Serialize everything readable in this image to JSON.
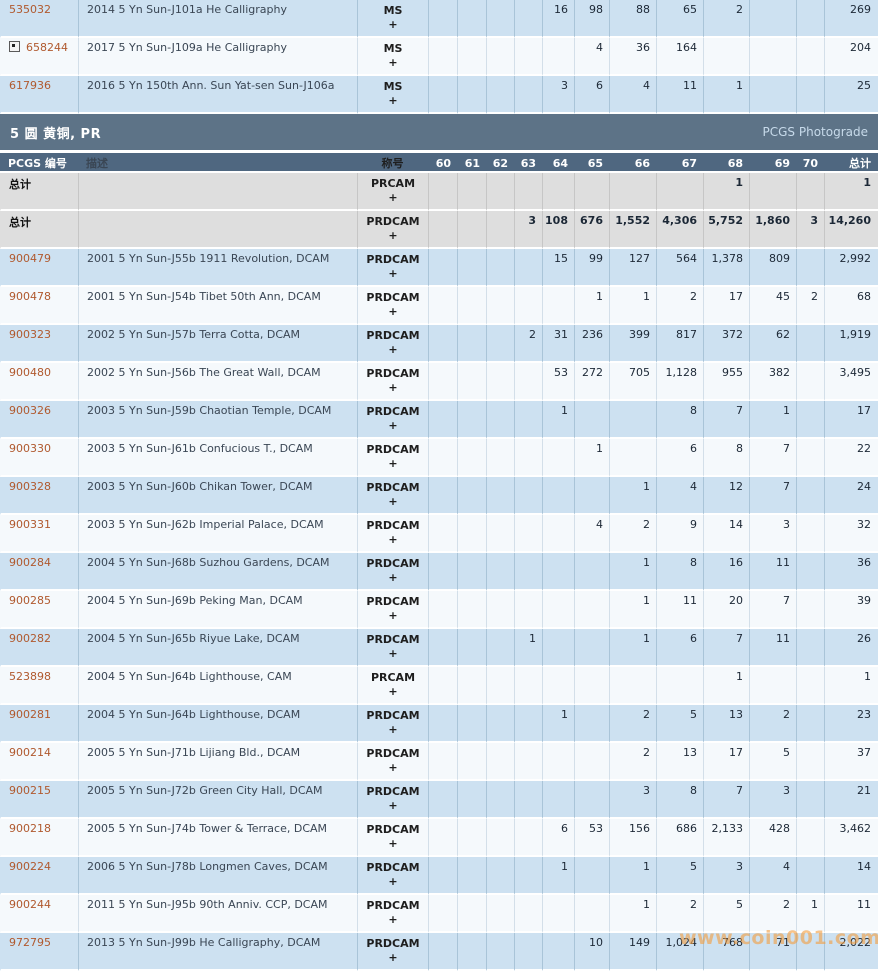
{
  "section": {
    "title": "5 圆 黄铜, PR",
    "right_label": "PCGS Photograde"
  },
  "watermark": "www.coin001.com",
  "columns": {
    "pcgs": "PCGS 编号",
    "desc": "描述",
    "desig": "称号",
    "grades": [
      "60",
      "61",
      "62",
      "63",
      "64",
      "65",
      "66",
      "67",
      "68",
      "69",
      "70"
    ],
    "total": "总计"
  },
  "top_rows": [
    {
      "pcgs": "535032",
      "icon": false,
      "desc": "2014 5 Yn Sun-J101a He Calligraphy",
      "desig": "MS",
      "plus": "+",
      "grades": {
        "64": "16",
        "65": "98",
        "66": "88",
        "67": "65",
        "68": "2"
      },
      "total": "269"
    },
    {
      "pcgs": "658244",
      "icon": true,
      "desc": "2017 5 Yn Sun-J109a He Calligraphy",
      "desig": "MS",
      "plus": "+",
      "grades": {
        "65": "4",
        "66": "36",
        "67": "164"
      },
      "total": "204"
    },
    {
      "pcgs": "617936",
      "icon": false,
      "desc": "2016 5 Yn 150th Ann. Sun Yat-sen Sun-J106a",
      "desig": "MS",
      "plus": "+",
      "grades": {
        "64": "3",
        "65": "6",
        "66": "4",
        "67": "11",
        "68": "1"
      },
      "total": "25"
    }
  ],
  "summary_rows": [
    {
      "label": "总计",
      "desig": "PRCAM",
      "plus": "+",
      "grades": {
        "68": "1"
      },
      "total": "1"
    },
    {
      "label": "总计",
      "desig": "PRDCAM",
      "plus": "+",
      "grades": {
        "63": "3",
        "64": "108",
        "65": "676",
        "66": "1,552",
        "67": "4,306",
        "68": "5,752",
        "69": "1,860",
        "70": "3"
      },
      "total": "14,260"
    }
  ],
  "rows": [
    {
      "pcgs": "900479",
      "icon": false,
      "desc": "2001 5 Yn Sun-J55b 1911 Revolution, DCAM",
      "desig": "PRDCAM",
      "plus": "+",
      "grades": {
        "64": "15",
        "65": "99",
        "66": "127",
        "67": "564",
        "68": "1,378",
        "69": "809"
      },
      "total": "2,992"
    },
    {
      "pcgs": "900478",
      "icon": false,
      "desc": "2001 5 Yn Sun-J54b Tibet 50th Ann, DCAM",
      "desig": "PRDCAM",
      "plus": "+",
      "grades": {
        "65": "1",
        "66": "1",
        "67": "2",
        "68": "17",
        "69": "45",
        "70": "2"
      },
      "total": "68"
    },
    {
      "pcgs": "900323",
      "icon": false,
      "desc": "2002 5 Yn Sun-J57b Terra Cotta, DCAM",
      "desig": "PRDCAM",
      "plus": "+",
      "grades": {
        "63": "2",
        "64": "31",
        "65": "236",
        "66": "399",
        "67": "817",
        "68": "372",
        "69": "62"
      },
      "total": "1,919"
    },
    {
      "pcgs": "900480",
      "icon": false,
      "desc": "2002 5 Yn Sun-J56b The Great Wall, DCAM",
      "desig": "PRDCAM",
      "plus": "+",
      "grades": {
        "64": "53",
        "65": "272",
        "66": "705",
        "67": "1,128",
        "68": "955",
        "69": "382"
      },
      "total": "3,495"
    },
    {
      "pcgs": "900326",
      "icon": false,
      "desc": "2003 5 Yn Sun-J59b Chaotian Temple, DCAM",
      "desig": "PRDCAM",
      "plus": "+",
      "grades": {
        "64": "1",
        "67": "8",
        "68": "7",
        "69": "1"
      },
      "total": "17"
    },
    {
      "pcgs": "900330",
      "icon": false,
      "desc": "2003 5 Yn Sun-J61b Confucious T., DCAM",
      "desig": "PRDCAM",
      "plus": "+",
      "grades": {
        "65": "1",
        "67": "6",
        "68": "8",
        "69": "7"
      },
      "total": "22"
    },
    {
      "pcgs": "900328",
      "icon": false,
      "desc": "2003 5 Yn Sun-J60b Chikan Tower, DCAM",
      "desig": "PRDCAM",
      "plus": "+",
      "grades": {
        "66": "1",
        "67": "4",
        "68": "12",
        "69": "7"
      },
      "total": "24"
    },
    {
      "pcgs": "900331",
      "icon": false,
      "desc": "2003 5 Yn Sun-J62b Imperial Palace, DCAM",
      "desig": "PRDCAM",
      "plus": "+",
      "grades": {
        "65": "4",
        "66": "2",
        "67": "9",
        "68": "14",
        "69": "3"
      },
      "total": "32"
    },
    {
      "pcgs": "900284",
      "icon": false,
      "desc": "2004 5 Yn Sun-J68b Suzhou Gardens, DCAM",
      "desig": "PRDCAM",
      "plus": "+",
      "grades": {
        "66": "1",
        "67": "8",
        "68": "16",
        "69": "11"
      },
      "total": "36"
    },
    {
      "pcgs": "900285",
      "icon": false,
      "desc": "2004 5 Yn Sun-J69b Peking Man, DCAM",
      "desig": "PRDCAM",
      "plus": "+",
      "grades": {
        "66": "1",
        "67": "11",
        "68": "20",
        "69": "7"
      },
      "total": "39"
    },
    {
      "pcgs": "900282",
      "icon": false,
      "desc": "2004 5 Yn Sun-J65b Riyue Lake, DCAM",
      "desig": "PRDCAM",
      "plus": "+",
      "grades": {
        "63": "1",
        "66": "1",
        "67": "6",
        "68": "7",
        "69": "11"
      },
      "total": "26"
    },
    {
      "pcgs": "523898",
      "icon": false,
      "desc": "2004 5 Yn Sun-J64b Lighthouse, CAM",
      "desig": "PRCAM",
      "plus": "+",
      "grades": {
        "68": "1"
      },
      "total": "1"
    },
    {
      "pcgs": "900281",
      "icon": false,
      "desc": "2004 5 Yn Sun-J64b Lighthouse, DCAM",
      "desig": "PRDCAM",
      "plus": "+",
      "grades": {
        "64": "1",
        "66": "2",
        "67": "5",
        "68": "13",
        "69": "2"
      },
      "total": "23"
    },
    {
      "pcgs": "900214",
      "icon": false,
      "desc": "2005 5 Yn Sun-J71b Lijiang Bld., DCAM",
      "desig": "PRDCAM",
      "plus": "+",
      "grades": {
        "66": "2",
        "67": "13",
        "68": "17",
        "69": "5"
      },
      "total": "37"
    },
    {
      "pcgs": "900215",
      "icon": false,
      "desc": "2005 5 Yn Sun-J72b Green City Hall, DCAM",
      "desig": "PRDCAM",
      "plus": "+",
      "grades": {
        "66": "3",
        "67": "8",
        "68": "7",
        "69": "3"
      },
      "total": "21"
    },
    {
      "pcgs": "900218",
      "icon": false,
      "desc": "2005 5 Yn Sun-J74b Tower & Terrace, DCAM",
      "desig": "PRDCAM",
      "plus": "+",
      "grades": {
        "64": "6",
        "65": "53",
        "66": "156",
        "67": "686",
        "68": "2,133",
        "69": "428"
      },
      "total": "3,462"
    },
    {
      "pcgs": "900224",
      "icon": false,
      "desc": "2006 5 Yn Sun-J78b Longmen Caves, DCAM",
      "desig": "PRDCAM",
      "plus": "+",
      "grades": {
        "64": "1",
        "66": "1",
        "67": "5",
        "68": "3",
        "69": "4"
      },
      "total": "14"
    },
    {
      "pcgs": "900244",
      "icon": false,
      "desc": "2011 5 Yn Sun-J95b 90th Anniv. CCP, DCAM",
      "desig": "PRDCAM",
      "plus": "+",
      "grades": {
        "66": "1",
        "67": "2",
        "68": "5",
        "69": "2",
        "70": "1"
      },
      "total": "11"
    },
    {
      "pcgs": "972795",
      "icon": false,
      "desc": "2013 5 Yn Sun-J99b He Calligraphy, DCAM",
      "desig": "PRDCAM",
      "plus": "+",
      "grades": {
        "65": "10",
        "66": "149",
        "67": "1,024",
        "68": "768",
        "69": "71"
      },
      "total": "2,022"
    }
  ]
}
